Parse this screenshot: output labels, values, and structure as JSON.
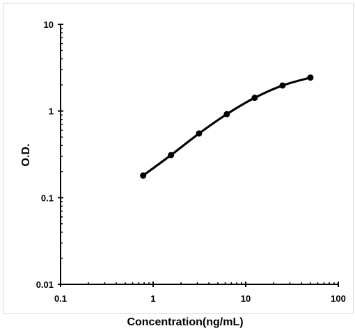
{
  "chart_data": {
    "type": "line",
    "title": "",
    "xlabel": "Concentration(ng/mL)",
    "ylabel": "O.D.",
    "xscale": "log",
    "yscale": "log",
    "xlim": [
      0.1,
      100
    ],
    "ylim": [
      0.01,
      10
    ],
    "grid": false,
    "legend": "none",
    "x_ticks": [
      "0.1",
      "1",
      "10",
      "100"
    ],
    "y_ticks": [
      "0.01",
      "0.1",
      "1",
      "10"
    ],
    "series": [
      {
        "x": [
          0.78,
          1.56,
          3.13,
          6.25,
          12.5,
          25,
          50
        ],
        "y": [
          0.18,
          0.31,
          0.55,
          0.92,
          1.42,
          1.97,
          2.43
        ]
      }
    ],
    "colors": {
      "line": "#000000",
      "marker": "#000000",
      "axis": "#000000"
    }
  }
}
